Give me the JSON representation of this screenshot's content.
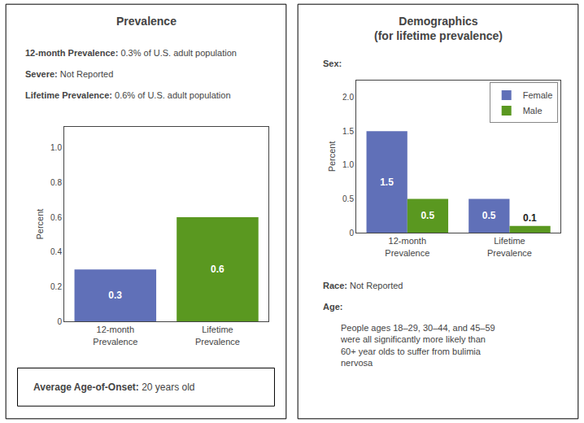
{
  "chart_data": [
    {
      "type": "bar",
      "title": "Prevalence",
      "annotations": [
        "12-month Prevalence: 0.3% of U.S. adult population",
        "Severe: Not Reported",
        "Lifetime Prevalence: 0.6% of U.S. adult population",
        "Average Age-of-Onset: 20 years old"
      ],
      "categories": [
        "12-month\nPrevalence",
        "Lifetime\nPrevalence"
      ],
      "values": [
        0.3,
        0.6
      ],
      "colors": [
        "#6070b8",
        "#5a9820"
      ],
      "ylabel": "Percent",
      "ylim": [
        0,
        1.12
      ],
      "yticks": [
        0,
        0.2,
        0.4,
        0.6,
        0.8,
        {
          "value": 1.0,
          "label": "1.0"
        }
      ],
      "grid": false,
      "data_labels": true
    },
    {
      "type": "bar",
      "title": "Demographics\n(for lifetime prevalence)",
      "subtitle": "Sex:",
      "annotations": [
        "Race: Not Reported",
        "Age:",
        "People ages 18–29, 30–44, and 45–59\nwere all significantly more likely than\n60+ year olds to suffer from bulimia\nnervosa"
      ],
      "categories": [
        "12-month\nPrevalence",
        "Lifetime\nPrevalence"
      ],
      "series": [
        {
          "name": "Female",
          "color": "#6070b8",
          "values": [
            1.5,
            0.5
          ]
        },
        {
          "name": "Male",
          "color": "#5a9820",
          "values": [
            0.5,
            0.1
          ]
        }
      ],
      "ylabel": "Percent",
      "ylim": [
        0,
        2.25
      ],
      "yticks": [
        0,
        0.5,
        {
          "value": 1.0,
          "label": "1.0"
        },
        1.5,
        {
          "value": 2.0,
          "label": "2.0"
        }
      ],
      "grid": false,
      "legend": "upper right",
      "data_labels": true
    }
  ]
}
